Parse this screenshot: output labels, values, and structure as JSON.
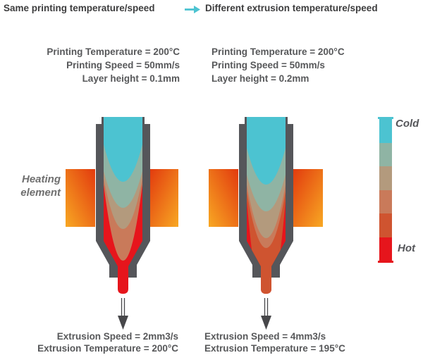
{
  "title": {
    "left": "Same printing temperature/speed",
    "right": "Different extrusion temperature/speed"
  },
  "columns": {
    "left": {
      "printing_params": [
        "Printing Temperature = 200°C",
        "Printing Speed = 50mm/s",
        "Layer height = 0.1mm"
      ],
      "extrusion_params": [
        "Extrusion Speed = 2mm3/s",
        "Extrusion Temperature = 200°C"
      ]
    },
    "right": {
      "printing_params": [
        "Printing Temperature = 200°C",
        "Printing Speed = 50mm/s",
        "Layer height = 0.2mm"
      ],
      "extrusion_params": [
        "Extrusion Speed = 4mm3/s",
        "Extrusion Temperature = 195°C"
      ]
    }
  },
  "annotations": {
    "heating_element": [
      "Heating",
      "element"
    ],
    "scale_cold": "Cold",
    "scale_hot": "Hot"
  },
  "colors": {
    "accent_cyan": "#4cc3d1",
    "nozzle_gray": "#55565a",
    "heating_hot": "#e23a0e",
    "heating_warm": "#f8a823",
    "melt_red": "#e6151c",
    "melt_terracotta": "#cf5430",
    "melt_salmon": "#c97a5a",
    "melt_tan": "#b39a7d",
    "melt_sage": "#8fb4a4",
    "scale": [
      "#4cc3d1",
      "#8fb4a4",
      "#b39a7d",
      "#c97a5a",
      "#cf5430",
      "#e6151c"
    ]
  }
}
